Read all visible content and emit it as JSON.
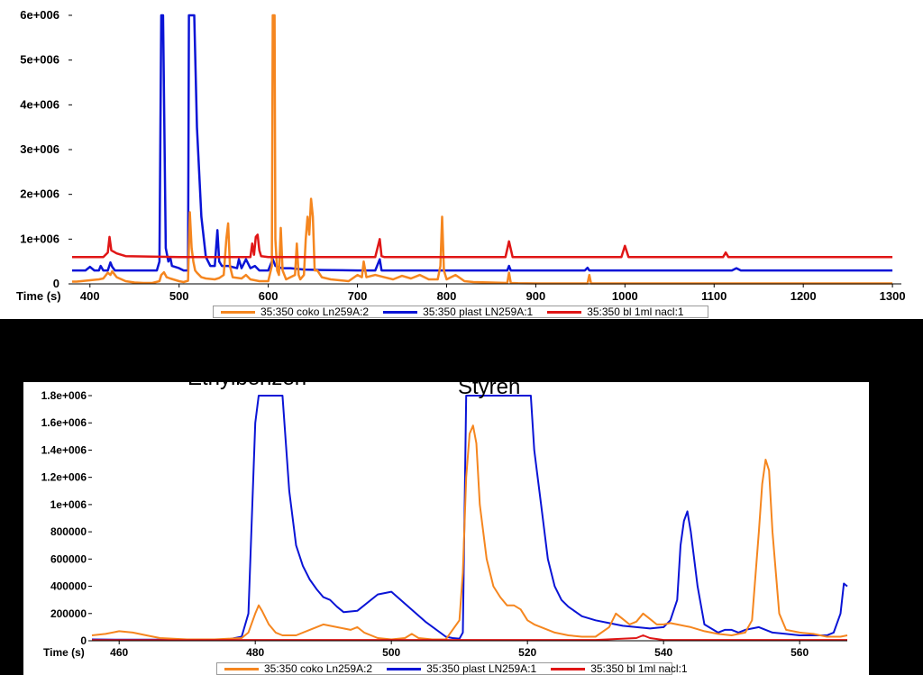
{
  "colors": {
    "orange": "#f5861f",
    "blue": "#0a14d6",
    "red": "#e01616"
  },
  "legend": [
    {
      "label": "35:350 coko Ln259A:2",
      "color": "#f5861f"
    },
    {
      "label": "35:350 plast LN259A:1",
      "color": "#0a14d6"
    },
    {
      "label": "35:350 bl 1ml nacl:1",
      "color": "#e01616"
    }
  ],
  "chart_data": [
    {
      "type": "line",
      "xlabel": "Time (s)",
      "xlim": [
        380,
        1310
      ],
      "ylim": [
        0,
        6000000
      ],
      "x_ticks": [
        400,
        500,
        600,
        700,
        800,
        900,
        1000,
        1100,
        1200,
        1300
      ],
      "y_ticks": [
        {
          "value": 0,
          "label": "0"
        },
        {
          "value": 1000000,
          "label": "1e+006"
        },
        {
          "value": 2000000,
          "label": "2e+006"
        },
        {
          "value": 3000000,
          "label": "3e+006"
        },
        {
          "value": 4000000,
          "label": "4e+006"
        },
        {
          "value": 5000000,
          "label": "5e+006"
        },
        {
          "value": 6000000,
          "label": "6e+006"
        }
      ],
      "series": [
        {
          "name": "35:350 coko Ln259A:2",
          "color": "#f5861f",
          "x": [
            380,
            385,
            390,
            395,
            400,
            405,
            410,
            415,
            420,
            423,
            425,
            430,
            440,
            450,
            460,
            470,
            478,
            480,
            483,
            486,
            490,
            500,
            505,
            510,
            512,
            514,
            516,
            518,
            520,
            525,
            530,
            540,
            545,
            550,
            553,
            555,
            557,
            560,
            570,
            575,
            580,
            585,
            590,
            600,
            604,
            605,
            606,
            607,
            608,
            610,
            612,
            614,
            616,
            620,
            630,
            632,
            634,
            636,
            640,
            642,
            644,
            646,
            648,
            650,
            652,
            655,
            660,
            670,
            680,
            690,
            700,
            705,
            707,
            710,
            720,
            730,
            740,
            750,
            760,
            770,
            780,
            790,
            793,
            795,
            797,
            800,
            810,
            820,
            830,
            850,
            868,
            870,
            872,
            880,
            900,
            950,
            958,
            960,
            962,
            980,
            1000,
            1050,
            1100,
            1150,
            1200,
            1250,
            1300
          ],
          "y": [
            50000,
            50000,
            60000,
            70000,
            80000,
            90000,
            100000,
            120000,
            250000,
            200000,
            280000,
            150000,
            60000,
            30000,
            20000,
            20000,
            60000,
            200000,
            260000,
            150000,
            120000,
            60000,
            40000,
            70000,
            1600000,
            800000,
            500000,
            300000,
            250000,
            150000,
            120000,
            100000,
            130000,
            200000,
            1000000,
            1350000,
            400000,
            150000,
            120000,
            200000,
            100000,
            80000,
            60000,
            60000,
            400000,
            6000000,
            6000000,
            6000000,
            1000000,
            300000,
            200000,
            1250000,
            300000,
            100000,
            200000,
            900000,
            200000,
            100000,
            200000,
            1000000,
            1500000,
            1100000,
            1900000,
            1500000,
            300000,
            300000,
            150000,
            100000,
            80000,
            60000,
            200000,
            150000,
            500000,
            150000,
            200000,
            150000,
            100000,
            180000,
            120000,
            200000,
            100000,
            100000,
            400000,
            1500000,
            300000,
            100000,
            200000,
            60000,
            40000,
            30000,
            20000,
            250000,
            20000,
            15000,
            10000,
            10000,
            10000,
            200000,
            10000,
            10000,
            10000,
            10000,
            10000,
            10000,
            10000,
            10000,
            10000
          ]
        },
        {
          "name": "35:350 plast LN259A:1",
          "color": "#0a14d6",
          "x": [
            380,
            395,
            400,
            405,
            410,
            412,
            415,
            420,
            423,
            425,
            428,
            440,
            460,
            475,
            478,
            480,
            482,
            485,
            488,
            490,
            492,
            500,
            505,
            510,
            511,
            513,
            515,
            517,
            520,
            525,
            530,
            535,
            540,
            543,
            545,
            548,
            555,
            565,
            567,
            570,
            575,
            580,
            585,
            590,
            600,
            603,
            605,
            608,
            615,
            625,
            640,
            660,
            700,
            720,
            725,
            727,
            730,
            760,
            800,
            850,
            868,
            870,
            872,
            900,
            955,
            958,
            960,
            1000,
            1100,
            1120,
            1125,
            1130,
            1300
          ],
          "y": [
            300000,
            300000,
            380000,
            300000,
            300000,
            400000,
            300000,
            300000,
            480000,
            380000,
            300000,
            300000,
            300000,
            300000,
            500000,
            6000000,
            6000000,
            800000,
            500000,
            600000,
            400000,
            350000,
            300000,
            300000,
            6000000,
            6000000,
            6000000,
            6000000,
            3500000,
            1500000,
            600000,
            400000,
            400000,
            1200000,
            500000,
            400000,
            400000,
            350000,
            550000,
            350000,
            550000,
            350000,
            400000,
            300000,
            300000,
            450000,
            550000,
            400000,
            350000,
            350000,
            320000,
            310000,
            300000,
            300000,
            550000,
            300000,
            300000,
            300000,
            300000,
            300000,
            300000,
            400000,
            300000,
            300000,
            300000,
            360000,
            300000,
            300000,
            300000,
            300000,
            350000,
            300000,
            300000
          ]
        },
        {
          "name": "35:350 bl 1ml nacl:1",
          "color": "#e01616",
          "x": [
            380,
            415,
            420,
            422,
            424,
            430,
            440,
            500,
            580,
            582,
            584,
            586,
            588,
            590,
            592,
            600,
            720,
            725,
            727,
            730,
            866,
            870,
            874,
            996,
            1000,
            1004,
            1110,
            1113,
            1116,
            1300
          ],
          "y": [
            600000,
            600000,
            700000,
            1050000,
            750000,
            680000,
            620000,
            600000,
            600000,
            900000,
            650000,
            1050000,
            1100000,
            750000,
            620000,
            600000,
            600000,
            1000000,
            620000,
            600000,
            600000,
            950000,
            600000,
            600000,
            850000,
            600000,
            600000,
            700000,
            600000,
            600000
          ]
        }
      ]
    },
    {
      "type": "line",
      "xlabel": "Time (s)",
      "xlim": [
        456,
        567
      ],
      "ylim": [
        0,
        1800000
      ],
      "x_ticks": [
        460,
        480,
        500,
        520,
        540,
        560
      ],
      "y_ticks": [
        {
          "value": 0,
          "label": "0"
        },
        {
          "value": 200000,
          "label": "200000"
        },
        {
          "value": 400000,
          "label": "400000"
        },
        {
          "value": 600000,
          "label": "600000"
        },
        {
          "value": 800000,
          "label": "800000"
        },
        {
          "value": 1000000,
          "label": "1e+006"
        },
        {
          "value": 1200000,
          "label": "1.2e+006"
        },
        {
          "value": 1400000,
          "label": "1.4e+006"
        },
        {
          "value": 1600000,
          "label": "1.6e+006"
        },
        {
          "value": 1800000,
          "label": "1.8e+006"
        }
      ],
      "annotations": [
        {
          "text": "Ethylbenzen",
          "x": 476
        },
        {
          "text": "Styren",
          "x": 516
        }
      ],
      "series": [
        {
          "name": "35:350 coko Ln259A:2",
          "color": "#f5861f",
          "x": [
            456,
            458,
            460,
            462,
            464,
            466,
            468,
            470,
            474,
            478,
            479,
            480,
            480.5,
            481,
            482,
            483,
            484,
            486,
            488,
            490,
            492,
            494,
            495,
            496,
            498,
            500,
            502,
            503,
            504,
            506,
            508,
            510,
            510.5,
            511,
            511.5,
            512,
            512.5,
            513,
            514,
            515,
            516,
            517,
            518,
            519,
            520,
            521,
            522,
            524,
            526,
            528,
            530,
            532,
            533,
            534,
            535,
            536,
            537,
            538,
            539,
            540,
            541,
            542,
            544,
            546,
            548,
            550,
            552,
            553,
            554,
            554.5,
            555,
            555.5,
            556,
            557,
            558,
            560,
            562,
            564,
            566,
            567
          ],
          "y": [
            40000,
            50000,
            70000,
            60000,
            40000,
            20000,
            15000,
            10000,
            10000,
            20000,
            60000,
            200000,
            260000,
            220000,
            120000,
            60000,
            40000,
            40000,
            80000,
            120000,
            100000,
            80000,
            100000,
            60000,
            20000,
            10000,
            20000,
            50000,
            20000,
            10000,
            10000,
            150000,
            500000,
            1200000,
            1520000,
            1580000,
            1450000,
            1000000,
            600000,
            400000,
            320000,
            260000,
            260000,
            230000,
            150000,
            120000,
            100000,
            60000,
            40000,
            30000,
            30000,
            100000,
            200000,
            160000,
            120000,
            140000,
            200000,
            160000,
            120000,
            120000,
            130000,
            120000,
            100000,
            70000,
            50000,
            40000,
            60000,
            150000,
            800000,
            1150000,
            1330000,
            1250000,
            800000,
            200000,
            80000,
            60000,
            50000,
            30000,
            30000,
            40000
          ]
        },
        {
          "name": "35:350 plast LN259A:1",
          "color": "#0a14d6",
          "x": [
            456,
            460,
            470,
            476,
            478,
            479,
            479.5,
            480,
            480.5,
            481,
            482,
            483,
            484,
            485,
            486,
            487,
            488,
            489,
            490,
            491,
            492,
            493,
            495,
            498,
            500,
            505,
            508,
            509,
            510,
            510.5,
            511,
            515,
            520,
            520.5,
            521,
            522,
            523,
            524,
            525,
            526,
            528,
            530,
            532,
            534,
            536,
            538,
            540,
            541,
            542,
            542.5,
            543,
            543.5,
            544,
            545,
            546,
            548,
            549,
            550,
            551,
            552,
            554,
            556,
            558,
            560,
            562,
            564,
            565,
            566,
            566.5,
            567
          ],
          "y": [
            10000,
            8000,
            8000,
            10000,
            30000,
            200000,
            900000,
            1600000,
            1800000,
            1800000,
            1800000,
            1800000,
            1800000,
            1100000,
            700000,
            550000,
            450000,
            380000,
            320000,
            300000,
            250000,
            210000,
            220000,
            340000,
            360000,
            140000,
            30000,
            20000,
            15000,
            60000,
            1800000,
            1800000,
            1800000,
            1800000,
            1400000,
            1000000,
            600000,
            400000,
            300000,
            250000,
            180000,
            150000,
            130000,
            110000,
            100000,
            90000,
            100000,
            150000,
            300000,
            700000,
            880000,
            950000,
            800000,
            400000,
            120000,
            60000,
            80000,
            80000,
            60000,
            80000,
            100000,
            60000,
            50000,
            40000,
            40000,
            40000,
            60000,
            200000,
            420000,
            400000
          ]
        },
        {
          "name": "35:350 bl 1ml nacl:1",
          "color": "#e01616",
          "x": [
            456,
            470,
            490,
            500,
            510,
            520,
            530,
            536,
            537,
            538,
            540,
            545,
            550,
            555,
            560,
            567
          ],
          "y": [
            5000,
            5000,
            6000,
            6000,
            6000,
            6000,
            6000,
            20000,
            40000,
            20000,
            6000,
            6000,
            6000,
            6000,
            6000,
            6000
          ]
        }
      ]
    }
  ]
}
